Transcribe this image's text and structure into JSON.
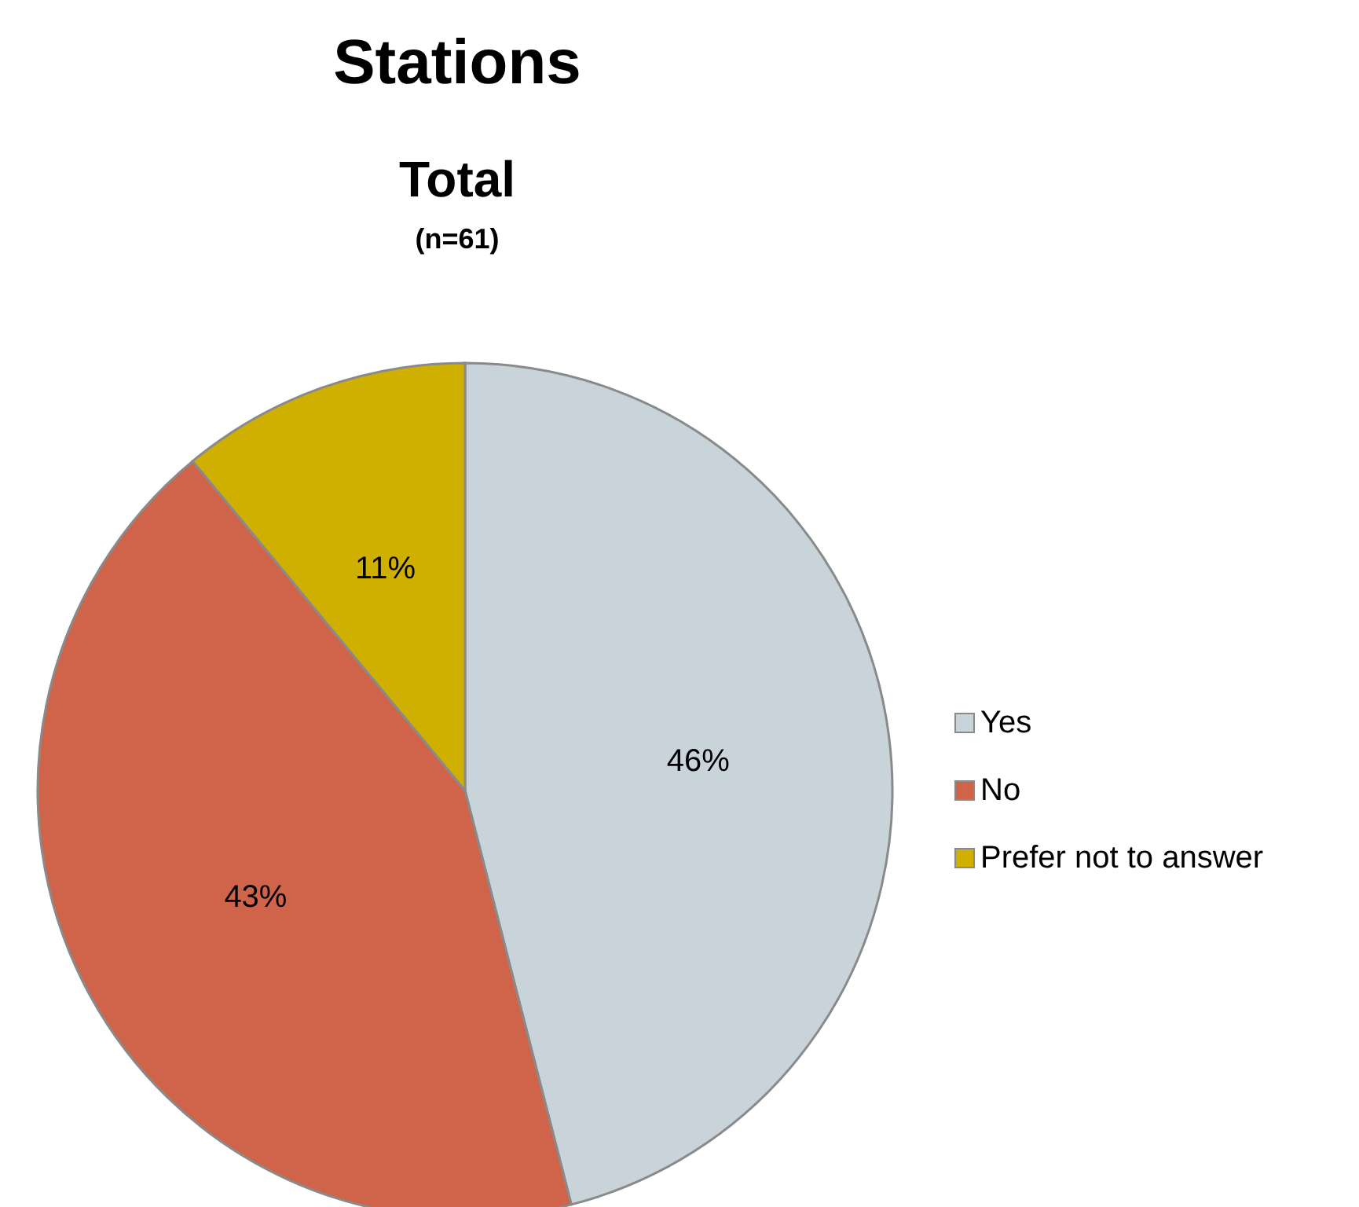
{
  "chart_data": {
    "type": "pie",
    "title": "Stations",
    "subtitle": "Total",
    "annotations": [
      "(n=61)"
    ],
    "categories": [
      "Yes",
      "No",
      "Prefer not to answer"
    ],
    "values": [
      46,
      43,
      11
    ],
    "colors": [
      "#c9d3da",
      "#d0644a",
      "#cfb000"
    ],
    "value_labels": [
      "46%",
      "43%",
      "11%"
    ],
    "legend": "right"
  }
}
